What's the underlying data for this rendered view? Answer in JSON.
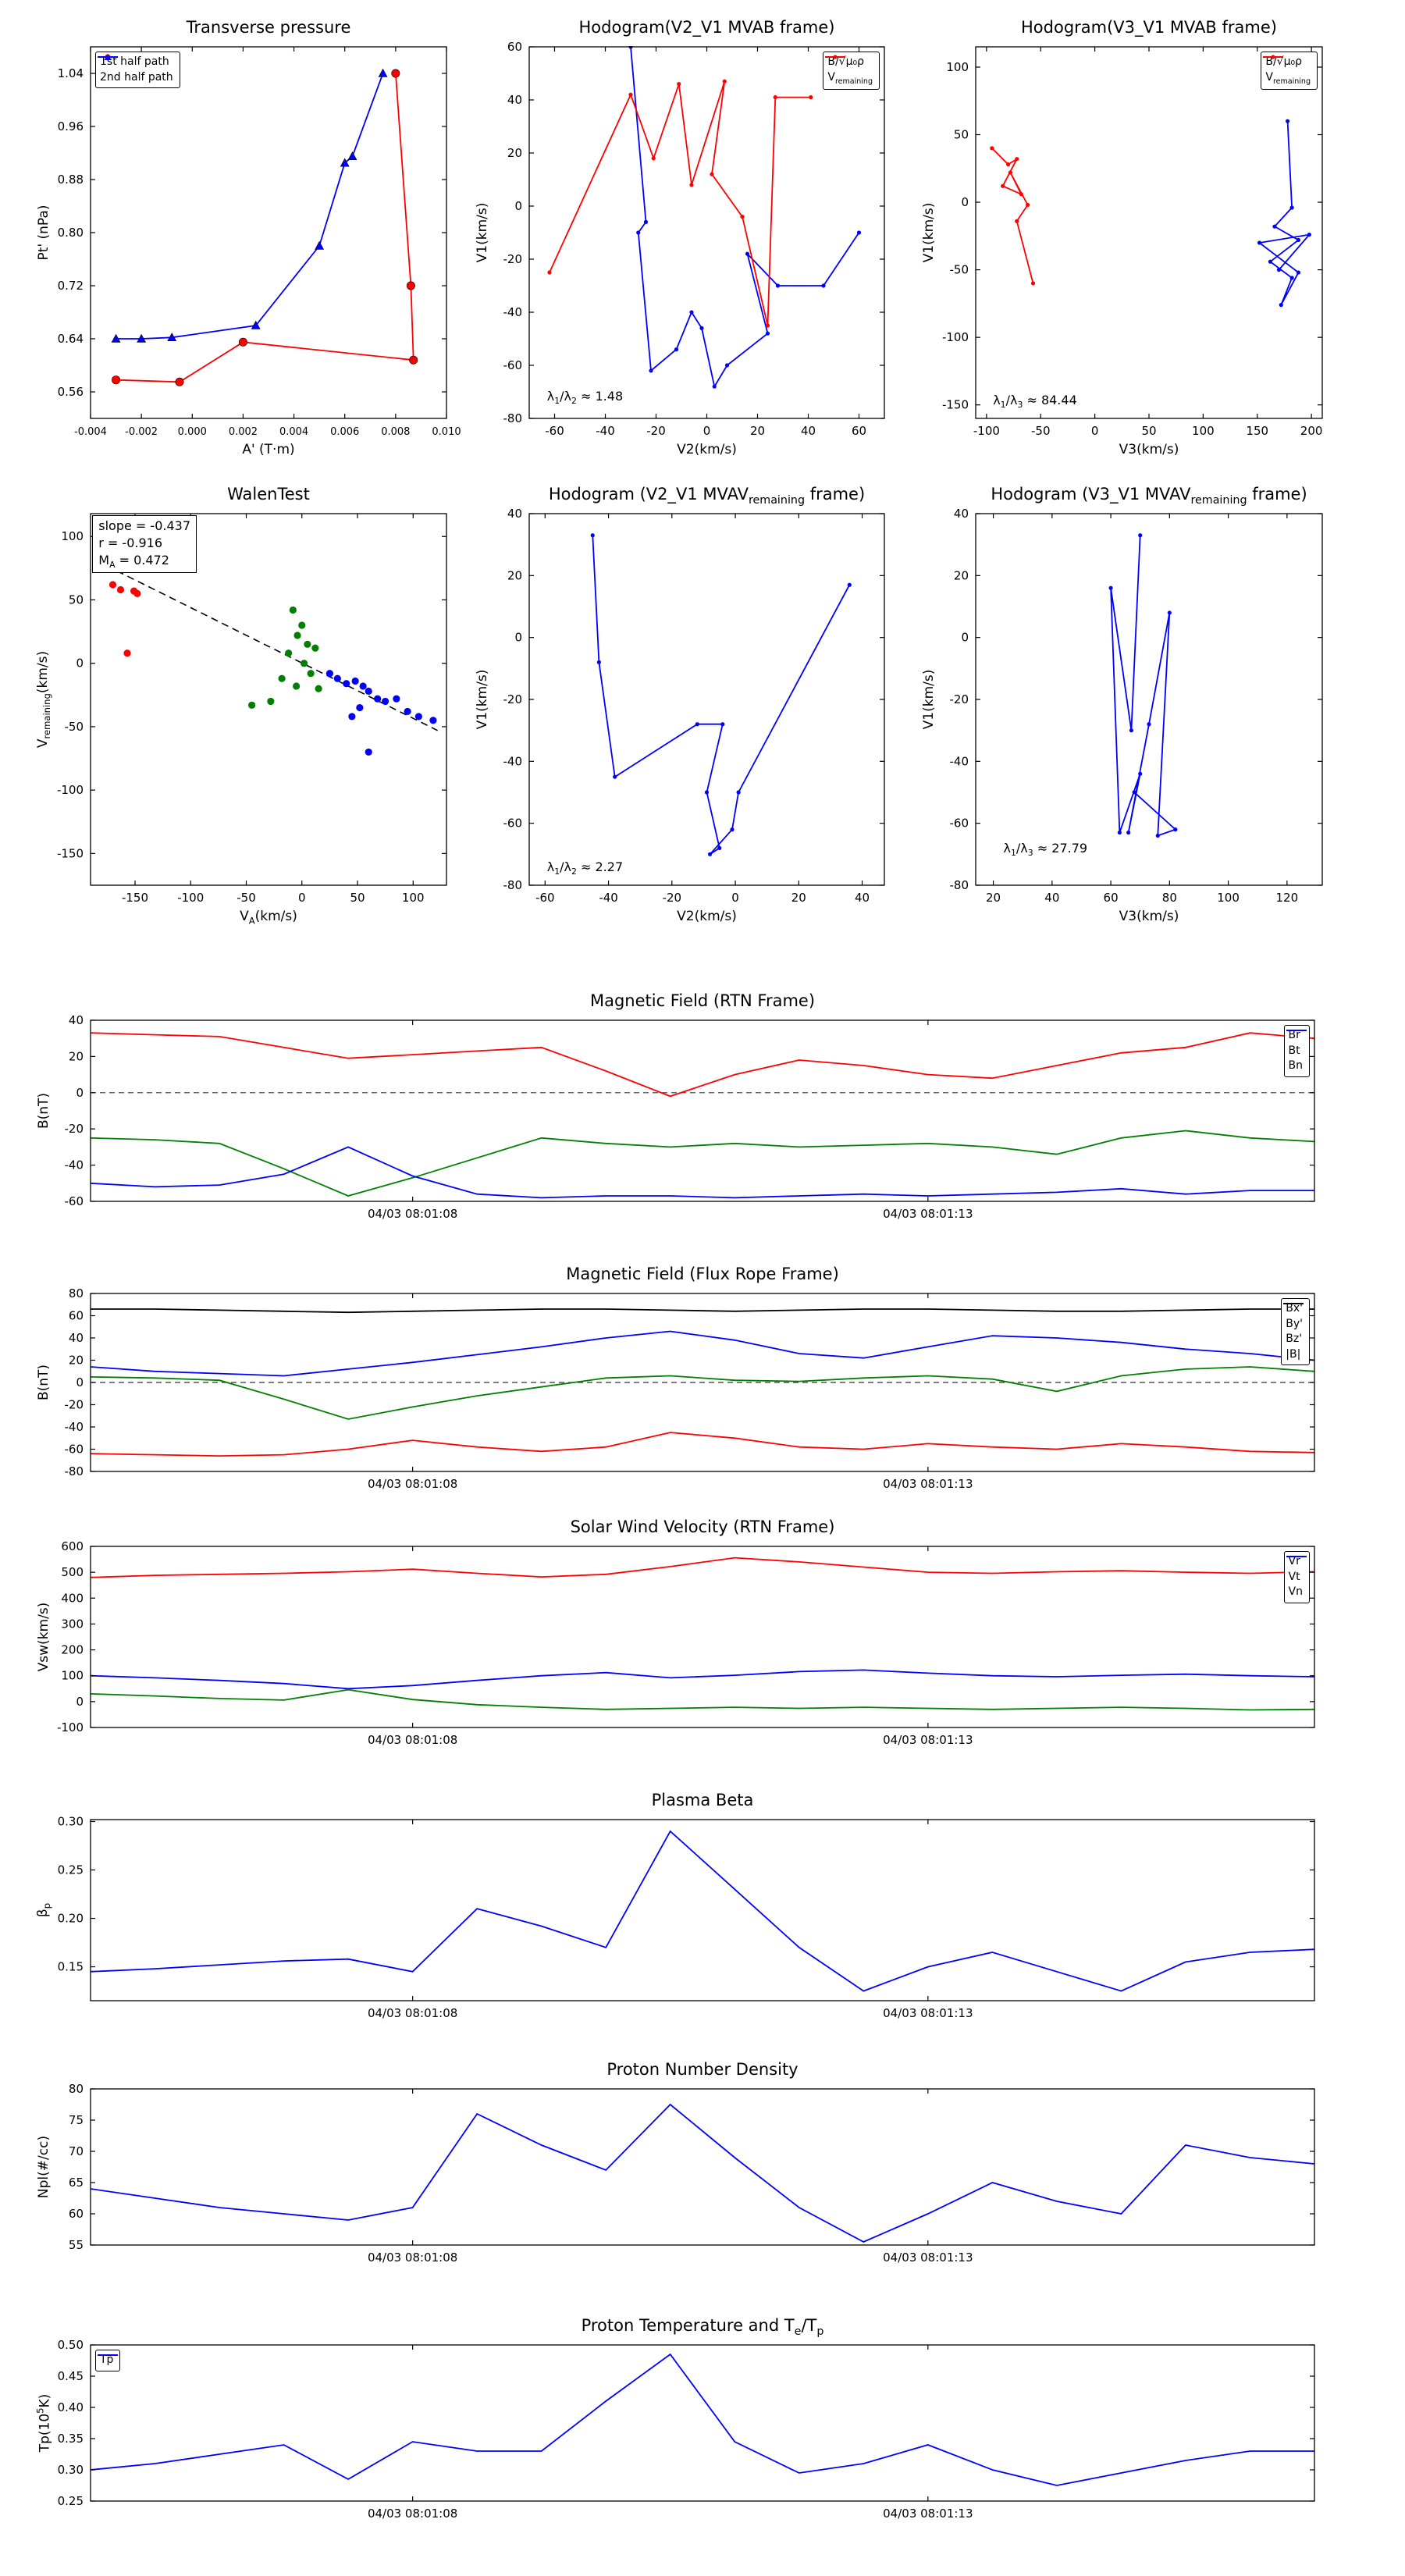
{
  "figure": {
    "background": "#ffffff"
  },
  "colors": {
    "red": "#ff0000",
    "green": "#008000",
    "blue": "#0000ff",
    "black": "#000000"
  },
  "time_axis": {
    "tick_labels": [
      "04/03 08:01:08",
      "04/03 08:01:13"
    ]
  },
  "chart_data": [
    {
      "id": "transverse-pressure",
      "type": "line",
      "title": "Transverse pressure",
      "xlabel": "A' (T·m)",
      "ylabel": "Pt' (nPa)",
      "xlim": [
        -0.004,
        0.01
      ],
      "ylim": [
        0.52,
        1.08
      ],
      "xticks": [
        -0.004,
        -0.002,
        0.0,
        0.002,
        0.004,
        0.006,
        0.008,
        0.01
      ],
      "xtick_labels": [
        "-0.004",
        "-0.002",
        "0.000",
        "0.002",
        "0.004",
        "0.006",
        "0.008",
        "0.010"
      ],
      "xtick_fs": 13,
      "yticks": [
        0.56,
        0.64,
        0.72,
        0.8,
        0.88,
        0.96,
        1.04
      ],
      "ytick_labels": [
        "0.56",
        "0.64",
        "0.72",
        "0.80",
        "0.88",
        "0.96",
        "1.04"
      ],
      "legend": {
        "pos": "tl"
      },
      "series": [
        {
          "name": "1st half path",
          "color": "#ff0000",
          "marker": "circle",
          "x": [
            0.008,
            0.0086,
            0.0087,
            0.002,
            -0.0005,
            -0.003
          ],
          "y": [
            1.04,
            0.72,
            0.608,
            0.635,
            0.575,
            0.578
          ]
        },
        {
          "name": "2nd half path",
          "color": "#0000ff",
          "marker": "triangle",
          "x": [
            -0.003,
            -0.002,
            -0.0008,
            0.0025,
            0.005,
            0.006,
            0.0063,
            0.0075
          ],
          "y": [
            0.64,
            0.64,
            0.642,
            0.66,
            0.78,
            0.905,
            0.915,
            1.04
          ]
        }
      ]
    },
    {
      "id": "hodogram-v2v1-mvab",
      "type": "line",
      "title": "Hodogram(V2_V1 MVAB frame)",
      "xlabel": "V2(km/s)",
      "ylabel": "V1(km/s)",
      "xlim": [
        -70,
        70
      ],
      "ylim": [
        -80,
        60
      ],
      "xticks": [
        -60,
        -40,
        -20,
        0,
        20,
        40,
        60
      ],
      "yticks": [
        -80,
        -60,
        -40,
        -20,
        0,
        20,
        40,
        60
      ],
      "legend": {
        "pos": "tr"
      },
      "annotations": [
        {
          "fx": 0.05,
          "fy": 0.92,
          "text": "λ_{1}/λ_{2} ≈ 1.48"
        }
      ],
      "series": [
        {
          "name": "B/√μ₀ρ",
          "color": "#0000ff",
          "marker": "point",
          "x": [
            -30,
            -24,
            -27,
            -22,
            -12,
            -6,
            -2,
            3,
            8,
            24,
            16,
            28,
            46,
            60
          ],
          "y": [
            60,
            -6,
            -10,
            -62,
            -54,
            -40,
            -46,
            -68,
            -60,
            -48,
            -18,
            -30,
            -30,
            -10
          ]
        },
        {
          "name": "V_{remaining}",
          "color": "#ff0000",
          "marker": "point",
          "x": [
            -62,
            -30,
            -21,
            -11,
            -6,
            7,
            2,
            14,
            24,
            27,
            41
          ],
          "y": [
            -25,
            42,
            18,
            46,
            8,
            47,
            12,
            -4,
            -45,
            41,
            41
          ]
        }
      ]
    },
    {
      "id": "hodogram-v3v1-mvab",
      "type": "line",
      "title": "Hodogram(V3_V1 MVAB frame)",
      "xlabel": "V3(km/s)",
      "ylabel": "V1(km/s)",
      "xlim": [
        -110,
        210
      ],
      "ylim": [
        -160,
        115
      ],
      "xticks": [
        -100,
        -50,
        0,
        50,
        100,
        150,
        200
      ],
      "yticks": [
        -150,
        -100,
        -50,
        0,
        50,
        100
      ],
      "legend": {
        "pos": "tr"
      },
      "annotations": [
        {
          "fx": 0.05,
          "fy": 0.93,
          "text": "λ_{1}/λ_{3} ≈ 84.44"
        }
      ],
      "series": [
        {
          "name": "B/√μ₀ρ",
          "color": "#0000ff",
          "marker": "point",
          "x": [
            178,
            182,
            166,
            188,
            162,
            182,
            172,
            188,
            152,
            198,
            170
          ],
          "y": [
            60,
            -4,
            -18,
            -28,
            -44,
            -56,
            -76,
            -52,
            -30,
            -24,
            -50
          ]
        },
        {
          "name": "V_{remaining}",
          "color": "#ff0000",
          "marker": "point",
          "x": [
            -95,
            -80,
            -72,
            -85,
            -68,
            -78,
            -62,
            -72,
            -57
          ],
          "y": [
            40,
            28,
            32,
            12,
            6,
            22,
            -2,
            -14,
            -60
          ]
        }
      ]
    },
    {
      "id": "walen-test",
      "type": "scatter",
      "title": "WalenTest",
      "xlabel": "V_{A}(km/s)",
      "ylabel": "V_{remaining}(km/s)",
      "xlim": [
        -190,
        130
      ],
      "ylim": [
        -175,
        118
      ],
      "xticks": [
        -150,
        -100,
        -50,
        0,
        50,
        100
      ],
      "yticks": [
        -150,
        -100,
        -50,
        0,
        50,
        100
      ],
      "lines": [
        {
          "x1": -185,
          "y1": 81,
          "x2": 122,
          "y2": -53,
          "color": "#000000"
        }
      ],
      "annotations": [
        {
          "fx": 0.005,
          "fy": 0.005,
          "box": true,
          "lines": [
            "slope = -0.437",
            "r = -0.916",
            "M_{A} = 0.472"
          ]
        }
      ],
      "series": [
        {
          "name": null,
          "color": "#ff0000",
          "marker": "dot",
          "draw": "markers",
          "x": [
            -175,
            -170,
            -163,
            -151,
            -148,
            -157
          ],
          "y": [
            78,
            62,
            58,
            57,
            55,
            8
          ]
        },
        {
          "name": null,
          "color": "#008000",
          "marker": "dot",
          "draw": "markers",
          "x": [
            -8,
            0,
            -4,
            5,
            12,
            -12,
            2,
            8,
            -18,
            -5,
            -28,
            -45,
            15
          ],
          "y": [
            42,
            30,
            22,
            15,
            12,
            8,
            0,
            -8,
            -12,
            -18,
            -30,
            -33,
            -20
          ]
        },
        {
          "name": null,
          "color": "#0000ff",
          "marker": "dot",
          "draw": "markers",
          "x": [
            25,
            32,
            40,
            48,
            55,
            60,
            68,
            75,
            85,
            95,
            105,
            118,
            60,
            45,
            52
          ],
          "y": [
            -8,
            -12,
            -16,
            -14,
            -18,
            -22,
            -28,
            -30,
            -28,
            -38,
            -42,
            -45,
            -70,
            -42,
            -35
          ]
        }
      ]
    },
    {
      "id": "hodogram-v2v1-mvav",
      "type": "line",
      "title": "Hodogram (V2_V1 MVAV_{remaining} frame)",
      "xlabel": "V2(km/s)",
      "ylabel": "V1(km/s)",
      "xlim": [
        -65,
        47
      ],
      "ylim": [
        -80,
        40
      ],
      "xticks": [
        -60,
        -40,
        -20,
        0,
        20,
        40
      ],
      "yticks": [
        -80,
        -60,
        -40,
        -20,
        0,
        20,
        40
      ],
      "annotations": [
        {
          "fx": 0.05,
          "fy": 0.93,
          "text": "λ_{1}/λ_{2} ≈ 2.27"
        }
      ],
      "series": [
        {
          "name": null,
          "color": "#0000ff",
          "marker": "point",
          "x": [
            -45,
            -43,
            -38,
            -12,
            -4,
            -9,
            -5,
            -8,
            -1,
            1,
            36
          ],
          "y": [
            33,
            -8,
            -45,
            -28,
            -28,
            -50,
            -68,
            -70,
            -62,
            -50,
            17
          ]
        }
      ]
    },
    {
      "id": "hodogram-v3v1-mvav",
      "type": "line",
      "title": "Hodogram (V3_V1 MVAV_{remaining} frame)",
      "xlabel": "V3(km/s)",
      "ylabel": "V1(km/s)",
      "xlim": [
        14,
        132
      ],
      "ylim": [
        -80,
        40
      ],
      "xticks": [
        20,
        40,
        60,
        80,
        100,
        120
      ],
      "yticks": [
        -80,
        -60,
        -40,
        -20,
        0,
        20,
        40
      ],
      "annotations": [
        {
          "fx": 0.08,
          "fy": 0.88,
          "text": "λ_{1}/λ_{3} ≈ 27.79"
        }
      ],
      "series": [
        {
          "name": null,
          "color": "#0000ff",
          "marker": "point",
          "x": [
            70,
            67,
            60,
            63,
            70,
            66,
            73,
            80,
            76,
            82,
            68
          ],
          "y": [
            33,
            -30,
            16,
            -63,
            -44,
            -63,
            -28,
            8,
            -64,
            -62,
            -50
          ]
        }
      ]
    },
    {
      "id": "b-rtn",
      "type": "line",
      "title": "Magnetic Field (RTN Frame)",
      "xlabel": "",
      "ylabel": "B(nT)",
      "xlim": [
        0,
        19
      ],
      "ylim": [
        -60,
        40
      ],
      "xticks": [
        5,
        13
      ],
      "xtick_labels": [
        "04/03 08:01:08",
        "04/03 08:01:13"
      ],
      "yticks": [
        -60,
        -40,
        -20,
        0,
        20,
        40
      ],
      "hlines": [
        0
      ],
      "legend": {
        "pos": "tr"
      },
      "series": [
        {
          "name": "Br",
          "color": "#ff0000",
          "y": [
            33,
            32,
            31,
            25,
            19,
            21,
            23,
            25,
            12,
            -2,
            10,
            18,
            15,
            10,
            8,
            15,
            22,
            25,
            33,
            30
          ]
        },
        {
          "name": "Bt",
          "color": "#008000",
          "y": [
            -25,
            -26,
            -28,
            -42,
            -57,
            -47,
            -36,
            -25,
            -28,
            -30,
            -28,
            -30,
            -29,
            -28,
            -30,
            -34,
            -25,
            -21,
            -25,
            -27
          ]
        },
        {
          "name": "Bn",
          "color": "#0000ff",
          "y": [
            -50,
            -52,
            -51,
            -45,
            -30,
            -46,
            -56,
            -58,
            -57,
            -57,
            -58,
            -57,
            -56,
            -57,
            -56,
            -55,
            -53,
            -56,
            -54,
            -54
          ]
        }
      ]
    },
    {
      "id": "b-fluxrope",
      "type": "line",
      "title": "Magnetic Field (Flux Rope Frame)",
      "xlabel": "",
      "ylabel": "B(nT)",
      "xlim": [
        0,
        19
      ],
      "ylim": [
        -80,
        80
      ],
      "xticks": [
        5,
        13
      ],
      "xtick_labels": [
        "04/03 08:01:08",
        "04/03 08:01:13"
      ],
      "yticks": [
        -80,
        -60,
        -40,
        -20,
        0,
        20,
        40,
        60,
        80
      ],
      "hlines": [
        0
      ],
      "legend": {
        "pos": "tr"
      },
      "series": [
        {
          "name": "Bx'",
          "color": "#ff0000",
          "y": [
            -64,
            -65,
            -66,
            -65,
            -60,
            -52,
            -58,
            -62,
            -58,
            -45,
            -50,
            -58,
            -60,
            -55,
            -58,
            -60,
            -55,
            -58,
            -62,
            -63
          ]
        },
        {
          "name": "By'",
          "color": "#008000",
          "y": [
            5,
            4,
            2,
            -15,
            -33,
            -22,
            -12,
            -4,
            4,
            6,
            2,
            1,
            4,
            6,
            3,
            -8,
            6,
            12,
            14,
            10
          ]
        },
        {
          "name": "Bz'",
          "color": "#0000ff",
          "y": [
            14,
            10,
            8,
            6,
            12,
            18,
            25,
            32,
            40,
            46,
            38,
            26,
            22,
            32,
            42,
            40,
            36,
            30,
            26,
            20
          ]
        },
        {
          "name": "|B|",
          "color": "#000000",
          "y": [
            66,
            66,
            65,
            64,
            63,
            64,
            65,
            66,
            66,
            65,
            64,
            65,
            66,
            66,
            65,
            64,
            64,
            65,
            66,
            66
          ]
        }
      ]
    },
    {
      "id": "vsw-rtn",
      "type": "line",
      "title": "Solar Wind Velocity (RTN Frame)",
      "xlabel": "",
      "ylabel": "Vsw(km/s)",
      "xlim": [
        0,
        19
      ],
      "ylim": [
        -100,
        600
      ],
      "xticks": [
        5,
        13
      ],
      "xtick_labels": [
        "04/03 08:01:08",
        "04/03 08:01:13"
      ],
      "yticks": [
        -100,
        0,
        100,
        200,
        300,
        400,
        500,
        600
      ],
      "legend": {
        "pos": "tr"
      },
      "series": [
        {
          "name": "Vr",
          "color": "#ff0000",
          "y": [
            480,
            488,
            492,
            496,
            502,
            512,
            496,
            482,
            492,
            522,
            556,
            540,
            520,
            500,
            496,
            502,
            506,
            500,
            496,
            502
          ]
        },
        {
          "name": "Vt",
          "color": "#008000",
          "y": [
            30,
            22,
            12,
            6,
            46,
            8,
            -12,
            -22,
            -30,
            -26,
            -22,
            -26,
            -22,
            -26,
            -30,
            -26,
            -22,
            -26,
            -32,
            -30
          ]
        },
        {
          "name": "Vn",
          "color": "#0000ff",
          "y": [
            100,
            92,
            82,
            70,
            50,
            62,
            82,
            100,
            112,
            92,
            102,
            116,
            122,
            110,
            100,
            96,
            102,
            106,
            100,
            96
          ]
        }
      ]
    },
    {
      "id": "plasma-beta",
      "type": "line",
      "title": "Plasma Beta",
      "xlabel": "",
      "ylabel": "β_{p}",
      "xlim": [
        0,
        19
      ],
      "ylim": [
        0.115,
        0.302
      ],
      "xticks": [
        5,
        13
      ],
      "xtick_labels": [
        "04/03 08:01:08",
        "04/03 08:01:13"
      ],
      "yticks": [
        0.15,
        0.2,
        0.25,
        0.3
      ],
      "ytick_labels": [
        "0.15",
        "0.20",
        "0.25",
        "0.30"
      ],
      "series": [
        {
          "name": null,
          "color": "#0000ff",
          "y": [
            0.145,
            0.148,
            0.152,
            0.156,
            0.158,
            0.145,
            0.21,
            0.192,
            0.17,
            0.29,
            0.23,
            0.17,
            0.125,
            0.15,
            0.165,
            0.145,
            0.125,
            0.155,
            0.165,
            0.168
          ]
        }
      ]
    },
    {
      "id": "np",
      "type": "line",
      "title": "Proton Number Density",
      "xlabel": "",
      "ylabel": "Npl(#/cc)",
      "xlim": [
        0,
        19
      ],
      "ylim": [
        55,
        80
      ],
      "xticks": [
        5,
        13
      ],
      "xtick_labels": [
        "04/03 08:01:08",
        "04/03 08:01:13"
      ],
      "yticks": [
        55,
        60,
        65,
        70,
        75,
        80
      ],
      "series": [
        {
          "name": null,
          "color": "#0000ff",
          "y": [
            64,
            62.5,
            61,
            60,
            59,
            61,
            76,
            71,
            67,
            77.5,
            69,
            61,
            55.5,
            60,
            65,
            62,
            60,
            71,
            69,
            68
          ]
        }
      ]
    },
    {
      "id": "tp",
      "type": "line",
      "title": "Proton Temperature and T_{e}/T_{p}",
      "xlabel": "",
      "ylabel": "Tp(10^{5}K)",
      "xlim": [
        0,
        19
      ],
      "ylim": [
        0.25,
        0.5
      ],
      "xticks": [
        5,
        13
      ],
      "xtick_labels": [
        "04/03 08:01:08",
        "04/03 08:01:13"
      ],
      "yticks": [
        0.25,
        0.3,
        0.35,
        0.4,
        0.45,
        0.5
      ],
      "ytick_labels": [
        "0.25",
        "0.30",
        "0.35",
        "0.40",
        "0.45",
        "0.50"
      ],
      "legend": {
        "pos": "tl"
      },
      "series": [
        {
          "name": "Tp",
          "color": "#0000ff",
          "y": [
            0.3,
            0.31,
            0.325,
            0.34,
            0.285,
            0.345,
            0.33,
            0.33,
            0.41,
            0.485,
            0.345,
            0.295,
            0.31,
            0.34,
            0.3,
            0.275,
            0.295,
            0.315,
            0.33,
            0.33
          ]
        }
      ]
    }
  ]
}
